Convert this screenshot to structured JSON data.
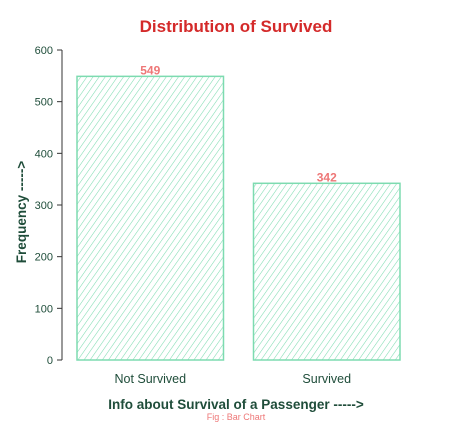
{
  "chart_data": {
    "type": "bar",
    "title": "Distribution of Survived",
    "xlabel": "Info about Survival of a Passenger ----->",
    "ylabel": "Frequency ----->",
    "caption": "Fig : Bar Chart",
    "categories": [
      "Not Survived",
      "Survived"
    ],
    "values": [
      549,
      342
    ],
    "data_labels": [
      "549",
      "342"
    ],
    "ylim": [
      0,
      600
    ],
    "yticks": [
      0,
      100,
      200,
      300,
      400,
      500,
      600
    ],
    "ytick_labels": [
      "0",
      "100",
      "200",
      "300",
      "400",
      "500",
      "600"
    ],
    "grid": false,
    "legend": "none",
    "bar_fill_pattern": "diagonal-hatch"
  },
  "colors": {
    "title": "#d42a2a",
    "axis_text": "#1f4d3a",
    "bar_stroke": "#7ddbb0",
    "bar_hatch": "#7ddbb0",
    "data_label": "#ee7777",
    "caption": "#ee7777",
    "axis_line": "#333333"
  }
}
